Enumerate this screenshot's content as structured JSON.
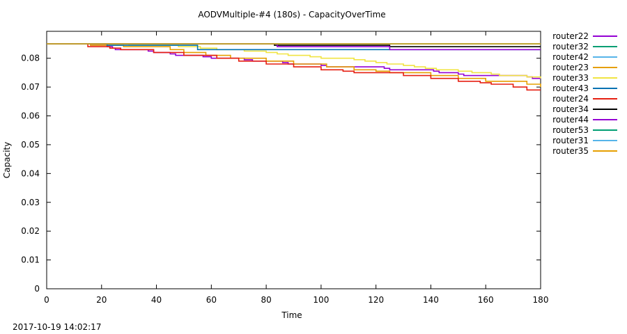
{
  "footer": {
    "timestamp": "2017-10-19 14:02:17"
  },
  "chart_data": {
    "type": "line",
    "title": "AODVMultiple-#4 (180s) - CapacityOverTime",
    "xlabel": "Time",
    "ylabel": "Capacity",
    "xlim": [
      0,
      180
    ],
    "ylim": [
      0,
      0.085
    ],
    "xticks": [
      0,
      20,
      40,
      60,
      80,
      100,
      120,
      140,
      160,
      180
    ],
    "yticks": [
      0,
      0.01,
      0.02,
      0.03,
      0.04,
      0.05,
      0.06,
      0.07,
      0.08
    ],
    "grid": false,
    "legend": "right",
    "series": [
      {
        "name": "router22",
        "color": "#9400d3",
        "points": [
          [
            0,
            0.085
          ],
          [
            15,
            0.085
          ],
          [
            16,
            0.0845
          ],
          [
            22,
            0.084
          ],
          [
            24,
            0.0835
          ],
          [
            25,
            0.083
          ],
          [
            37,
            0.0825
          ],
          [
            39,
            0.082
          ],
          [
            45,
            0.0815
          ],
          [
            47,
            0.081
          ],
          [
            57,
            0.0805
          ],
          [
            60,
            0.08
          ],
          [
            72,
            0.0795
          ],
          [
            75,
            0.079
          ],
          [
            86,
            0.0785
          ],
          [
            88,
            0.078
          ],
          [
            100,
            0.0775
          ],
          [
            102,
            0.077
          ],
          [
            123,
            0.0765
          ],
          [
            125,
            0.076
          ],
          [
            141,
            0.0755
          ],
          [
            143,
            0.075
          ],
          [
            150,
            0.0745
          ],
          [
            152,
            0.074
          ],
          [
            175,
            0.0735
          ],
          [
            177,
            0.073
          ],
          [
            180,
            0.073
          ]
        ]
      },
      {
        "name": "router32",
        "color": "#009e73",
        "points": [
          [
            0,
            0.085
          ],
          [
            180,
            0.085
          ]
        ]
      },
      {
        "name": "router42",
        "color": "#56b4e9",
        "points": [
          [
            0,
            0.085
          ],
          [
            180,
            0.085
          ]
        ]
      },
      {
        "name": "router23",
        "color": "#e69f00",
        "points": [
          [
            0,
            0.085
          ],
          [
            14,
            0.085
          ],
          [
            16,
            0.0845
          ],
          [
            28,
            0.084
          ],
          [
            45,
            0.083
          ],
          [
            50,
            0.082
          ],
          [
            58,
            0.081
          ],
          [
            67,
            0.08
          ],
          [
            80,
            0.079
          ],
          [
            90,
            0.078
          ],
          [
            102,
            0.077
          ],
          [
            112,
            0.076
          ],
          [
            120,
            0.0755
          ],
          [
            125,
            0.075
          ],
          [
            140,
            0.074
          ],
          [
            150,
            0.073
          ],
          [
            160,
            0.072
          ],
          [
            175,
            0.071
          ],
          [
            180,
            0.07
          ]
        ]
      },
      {
        "name": "router33",
        "color": "#f0e442",
        "points": [
          [
            0,
            0.085
          ],
          [
            22,
            0.085
          ],
          [
            30,
            0.0845
          ],
          [
            48,
            0.084
          ],
          [
            56,
            0.0835
          ],
          [
            62,
            0.083
          ],
          [
            72,
            0.0825
          ],
          [
            80,
            0.082
          ],
          [
            84,
            0.0815
          ],
          [
            88,
            0.081
          ],
          [
            96,
            0.0805
          ],
          [
            100,
            0.08
          ],
          [
            112,
            0.0795
          ],
          [
            116,
            0.079
          ],
          [
            120,
            0.0785
          ],
          [
            124,
            0.078
          ],
          [
            130,
            0.0775
          ],
          [
            134,
            0.077
          ],
          [
            138,
            0.0765
          ],
          [
            142,
            0.076
          ],
          [
            150,
            0.0755
          ],
          [
            155,
            0.075
          ],
          [
            162,
            0.0745
          ],
          [
            165,
            0.074
          ],
          [
            175,
            0.0735
          ],
          [
            180,
            0.073
          ]
        ]
      },
      {
        "name": "router43",
        "color": "#0072b2",
        "points": [
          [
            0,
            0.085
          ],
          [
            20,
            0.085
          ],
          [
            22,
            0.0845
          ],
          [
            52,
            0.0845
          ],
          [
            55,
            0.083
          ],
          [
            180,
            0.083
          ]
        ]
      },
      {
        "name": "router24",
        "color": "#e51e10",
        "points": [
          [
            0,
            0.085
          ],
          [
            13,
            0.085
          ],
          [
            15,
            0.084
          ],
          [
            21,
            0.084
          ],
          [
            23,
            0.0835
          ],
          [
            27,
            0.083
          ],
          [
            39,
            0.082
          ],
          [
            50,
            0.081
          ],
          [
            62,
            0.08
          ],
          [
            70,
            0.079
          ],
          [
            80,
            0.078
          ],
          [
            90,
            0.077
          ],
          [
            100,
            0.076
          ],
          [
            108,
            0.0755
          ],
          [
            112,
            0.075
          ],
          [
            130,
            0.074
          ],
          [
            140,
            0.073
          ],
          [
            150,
            0.072
          ],
          [
            158,
            0.0715
          ],
          [
            162,
            0.071
          ],
          [
            170,
            0.07
          ],
          [
            175,
            0.069
          ],
          [
            180,
            0.069
          ]
        ]
      },
      {
        "name": "router34",
        "color": "#000000",
        "points": [
          [
            0,
            0.085
          ],
          [
            81,
            0.085
          ],
          [
            83,
            0.0845
          ],
          [
            124,
            0.0845
          ],
          [
            125,
            0.084
          ],
          [
            180,
            0.084
          ]
        ]
      },
      {
        "name": "router44",
        "color": "#9400d3",
        "points": [
          [
            0,
            0.085
          ],
          [
            83,
            0.085
          ],
          [
            84,
            0.084
          ],
          [
            124,
            0.084
          ],
          [
            125,
            0.083
          ],
          [
            180,
            0.083
          ]
        ]
      },
      {
        "name": "router53",
        "color": "#009e73",
        "points": [
          [
            0,
            0.085
          ],
          [
            180,
            0.085
          ]
        ]
      },
      {
        "name": "router31",
        "color": "#56b4e9",
        "points": [
          [
            0,
            0.085
          ],
          [
            180,
            0.085
          ]
        ]
      },
      {
        "name": "router35",
        "color": "#e69f00",
        "points": [
          [
            0,
            0.085
          ],
          [
            180,
            0.085
          ]
        ]
      }
    ]
  }
}
